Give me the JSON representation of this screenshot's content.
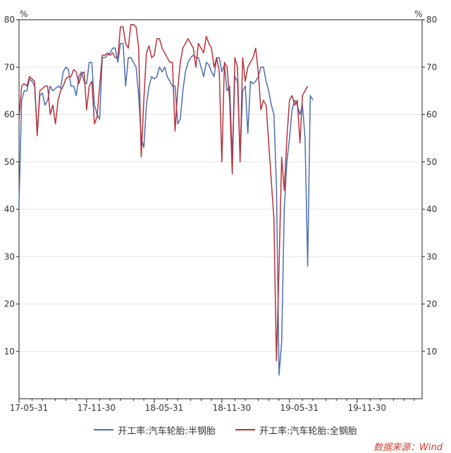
{
  "chart_data": {
    "type": "line",
    "unit_left": "%",
    "unit_right": "%",
    "ylim": [
      0,
      80
    ],
    "yticks": [
      10,
      20,
      30,
      40,
      50,
      60,
      70,
      80
    ],
    "xlim": [
      0,
      155
    ],
    "x_ticks": [
      {
        "x": 0,
        "label": "17-05-31"
      },
      {
        "x": 26,
        "label": "17-11-30"
      },
      {
        "x": 52,
        "label": "18-05-31"
      },
      {
        "x": 78,
        "label": "18-11-30"
      },
      {
        "x": 104,
        "label": "19-05-31"
      },
      {
        "x": 130,
        "label": "19-11-30"
      }
    ],
    "x_minor_ticks": [
      5,
      9,
      14,
      18,
      22,
      31,
      35,
      39,
      44,
      48,
      57,
      61,
      66,
      70,
      74,
      83,
      87,
      92,
      96,
      100,
      109,
      113,
      118,
      122,
      126,
      135,
      139,
      144,
      148,
      152
    ],
    "series": [
      {
        "name": "开工率:汽车轮胎:半钢胎",
        "color": "#4a6fb0",
        "points": [
          [
            0,
            41
          ],
          [
            1,
            63
          ],
          [
            2,
            65
          ],
          [
            3,
            65
          ],
          [
            4,
            67.5
          ],
          [
            5,
            67
          ],
          [
            6,
            66
          ],
          [
            7,
            56
          ],
          [
            8,
            64
          ],
          [
            9,
            64.5
          ],
          [
            10,
            62
          ],
          [
            11,
            63
          ],
          [
            12,
            66
          ],
          [
            13,
            65
          ],
          [
            14,
            65.5
          ],
          [
            15,
            66
          ],
          [
            16,
            65.5
          ],
          [
            17,
            69
          ],
          [
            18,
            70
          ],
          [
            19,
            69.5
          ],
          [
            20,
            66
          ],
          [
            21,
            66
          ],
          [
            22,
            64
          ],
          [
            23,
            68
          ],
          [
            24,
            69
          ],
          [
            25,
            67
          ],
          [
            26,
            66.5
          ],
          [
            27,
            71
          ],
          [
            28,
            71
          ],
          [
            29,
            62
          ],
          [
            30,
            60
          ],
          [
            31,
            59
          ],
          [
            32,
            72
          ],
          [
            33,
            72
          ],
          [
            34,
            72.5
          ],
          [
            35,
            73
          ],
          [
            36,
            74
          ],
          [
            37,
            74
          ],
          [
            38,
            71
          ],
          [
            39,
            75
          ],
          [
            40,
            75
          ],
          [
            41,
            66
          ],
          [
            42,
            72
          ],
          [
            43,
            72
          ],
          [
            44,
            71
          ],
          [
            45,
            70
          ],
          [
            46,
            64
          ],
          [
            47,
            55
          ],
          [
            48,
            53
          ],
          [
            49,
            62
          ],
          [
            50,
            66
          ],
          [
            51,
            68
          ],
          [
            52,
            67.5
          ],
          [
            53,
            68
          ],
          [
            54,
            70
          ],
          [
            55,
            69
          ],
          [
            56,
            70
          ],
          [
            57,
            68
          ],
          [
            58,
            67
          ],
          [
            59,
            66
          ],
          [
            60,
            66
          ],
          [
            61,
            58
          ],
          [
            62,
            59
          ],
          [
            63,
            65
          ],
          [
            64,
            69
          ],
          [
            65,
            71
          ],
          [
            66,
            72
          ],
          [
            67,
            72.5
          ],
          [
            68,
            72
          ],
          [
            69,
            72
          ],
          [
            70,
            70
          ],
          [
            71,
            68
          ],
          [
            72,
            71
          ],
          [
            73,
            70.5
          ],
          [
            74,
            69
          ],
          [
            75,
            68
          ],
          [
            76,
            72
          ],
          [
            77,
            72
          ],
          [
            78,
            69
          ],
          [
            79,
            70.5
          ],
          [
            80,
            65
          ],
          [
            81,
            66
          ],
          [
            82,
            51
          ],
          [
            83,
            68
          ],
          [
            84,
            67
          ],
          [
            85,
            51
          ],
          [
            86,
            65
          ],
          [
            87,
            66
          ],
          [
            88,
            56
          ],
          [
            89,
            67
          ],
          [
            90,
            66.5
          ],
          [
            91,
            67
          ],
          [
            92,
            68
          ],
          [
            93,
            70
          ],
          [
            94,
            70
          ],
          [
            95,
            67
          ],
          [
            96,
            65
          ],
          [
            97,
            62
          ],
          [
            98,
            60
          ],
          [
            99,
            45
          ],
          [
            100,
            5
          ],
          [
            101,
            12
          ],
          [
            102,
            40
          ],
          [
            103,
            50
          ],
          [
            104,
            55
          ],
          [
            105,
            61
          ],
          [
            106,
            63
          ],
          [
            107,
            62
          ],
          [
            108,
            60
          ],
          [
            109,
            62
          ],
          [
            110,
            55
          ],
          [
            111,
            28
          ],
          [
            112,
            64
          ],
          [
            113,
            63
          ]
        ]
      },
      {
        "name": "开工率:汽车轮胎:全钢胎",
        "color": "#b8323a",
        "points": [
          [
            0,
            59
          ],
          [
            1,
            66
          ],
          [
            2,
            66.5
          ],
          [
            3,
            66
          ],
          [
            4,
            68
          ],
          [
            5,
            67.5
          ],
          [
            6,
            67
          ],
          [
            7,
            55.5
          ],
          [
            8,
            65
          ],
          [
            9,
            65.5
          ],
          [
            10,
            66
          ],
          [
            11,
            66
          ],
          [
            12,
            60
          ],
          [
            13,
            62
          ],
          [
            14,
            58
          ],
          [
            15,
            63
          ],
          [
            16,
            65
          ],
          [
            17,
            66
          ],
          [
            18,
            67.5
          ],
          [
            19,
            68
          ],
          [
            20,
            68
          ],
          [
            21,
            69.5
          ],
          [
            22,
            69
          ],
          [
            23,
            66.5
          ],
          [
            24,
            68.5
          ],
          [
            25,
            69
          ],
          [
            26,
            61
          ],
          [
            27,
            66
          ],
          [
            28,
            67
          ],
          [
            29,
            58
          ],
          [
            30,
            59.5
          ],
          [
            31,
            66
          ],
          [
            32,
            72.5
          ],
          [
            33,
            72.5
          ],
          [
            34,
            73
          ],
          [
            35,
            72.5
          ],
          [
            36,
            73
          ],
          [
            37,
            72
          ],
          [
            38,
            72
          ],
          [
            39,
            78.5
          ],
          [
            40,
            78.5
          ],
          [
            41,
            75
          ],
          [
            42,
            74
          ],
          [
            43,
            79
          ],
          [
            44,
            79
          ],
          [
            45,
            78.5
          ],
          [
            46,
            74
          ],
          [
            47,
            51
          ],
          [
            48,
            63
          ],
          [
            49,
            73
          ],
          [
            50,
            74.5
          ],
          [
            51,
            72
          ],
          [
            52,
            72.5
          ],
          [
            53,
            76
          ],
          [
            54,
            76
          ],
          [
            55,
            74
          ],
          [
            56,
            73
          ],
          [
            57,
            72
          ],
          [
            58,
            71
          ],
          [
            59,
            71
          ],
          [
            60,
            56.5
          ],
          [
            61,
            65
          ],
          [
            62,
            71
          ],
          [
            63,
            74
          ],
          [
            64,
            75
          ],
          [
            65,
            76
          ],
          [
            66,
            75
          ],
          [
            67,
            74
          ],
          [
            68,
            70
          ],
          [
            69,
            75
          ],
          [
            70,
            74
          ],
          [
            71,
            73
          ],
          [
            72,
            76.5
          ],
          [
            73,
            75
          ],
          [
            74,
            74
          ],
          [
            75,
            70
          ],
          [
            76,
            72
          ],
          [
            77,
            69
          ],
          [
            78,
            50
          ],
          [
            79,
            71
          ],
          [
            80,
            70
          ],
          [
            81,
            63
          ],
          [
            82,
            47.5
          ],
          [
            83,
            72
          ],
          [
            84,
            70
          ],
          [
            85,
            50
          ],
          [
            86,
            72
          ],
          [
            87,
            67
          ],
          [
            88,
            70
          ],
          [
            89,
            71
          ],
          [
            90,
            72
          ],
          [
            91,
            74
          ],
          [
            92,
            69
          ],
          [
            93,
            61
          ],
          [
            94,
            63
          ],
          [
            95,
            62
          ],
          [
            96,
            54
          ],
          [
            97,
            46
          ],
          [
            98,
            38
          ],
          [
            99,
            8
          ],
          [
            100,
            28
          ],
          [
            101,
            51
          ],
          [
            102,
            44
          ],
          [
            103,
            55
          ],
          [
            104,
            63
          ],
          [
            105,
            64
          ],
          [
            106,
            62
          ],
          [
            107,
            63
          ],
          [
            108,
            54
          ],
          [
            109,
            64
          ],
          [
            110,
            65
          ],
          [
            111,
            66
          ]
        ]
      }
    ],
    "legend": [
      "开工率:汽车轮胎:半钢胎",
      "开工率:汽车轮胎:全钢胎"
    ],
    "legend_position": "bottom",
    "source": "数据来源：Wind",
    "grid": true
  }
}
